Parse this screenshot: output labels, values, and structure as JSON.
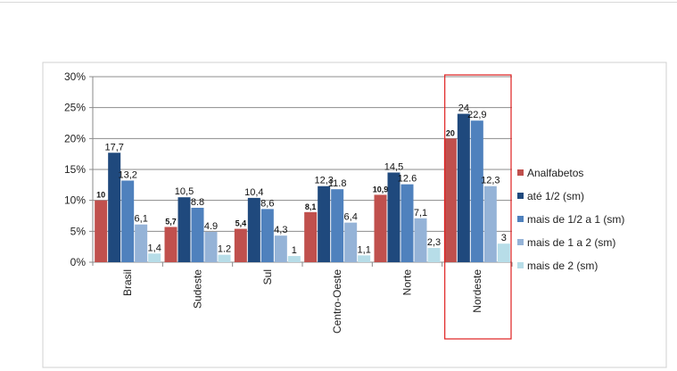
{
  "chart_data": {
    "type": "bar",
    "title": "",
    "xlabel": "",
    "ylabel": "",
    "ylim": [
      0,
      30
    ],
    "yticks": [
      "0%",
      "5%",
      "10%",
      "15%",
      "20%",
      "25%",
      "30%"
    ],
    "ytick_values": [
      0,
      5,
      10,
      15,
      20,
      25,
      30
    ],
    "grid": true,
    "legend_position": "right",
    "categories": [
      "Brasil",
      "Sudeste",
      "Sul",
      "Centro-Oeste",
      "Norte",
      "Nordeste"
    ],
    "highlighted_category": "Nordeste",
    "highlight_color": "#e02020",
    "series": [
      {
        "name": "Analfabetos",
        "color": "#c0504d",
        "values": [
          10,
          5.7,
          5.4,
          8.1,
          10.9,
          20
        ],
        "labels": [
          "10",
          "5,7",
          "5,4",
          "8,1",
          "10,9",
          "20"
        ]
      },
      {
        "name": "até 1/2 (sm)",
        "color": "#1f497d",
        "values": [
          17.7,
          10.5,
          10.4,
          12.3,
          14.5,
          24
        ],
        "labels": [
          "17,7",
          "10,5",
          "10,4",
          "12,3",
          "14,5",
          "24"
        ]
      },
      {
        "name": "mais de 1/2 a 1 (sm)",
        "color": "#4f81bd",
        "values": [
          13.2,
          8.8,
          8.6,
          11.8,
          12.6,
          22.9
        ],
        "labels": [
          "13,2",
          "8.8",
          "8,6",
          "11.8",
          "12.6",
          "22,9"
        ]
      },
      {
        "name": "mais de 1 a 2 (sm)",
        "color": "#95b3d7",
        "values": [
          6.1,
          4.9,
          4.3,
          6.4,
          7.1,
          12.3
        ],
        "labels": [
          "6,1",
          "4.9",
          "4,3",
          "6,4",
          "7,1",
          "12,3"
        ]
      },
      {
        "name": "mais de 2 (sm)",
        "color": "#b7dde8",
        "values": [
          1.4,
          1.2,
          1,
          1.1,
          2.3,
          3
        ],
        "labels": [
          "1,4",
          "1.2",
          "1",
          "1,1",
          "2,3",
          "3"
        ]
      }
    ]
  }
}
